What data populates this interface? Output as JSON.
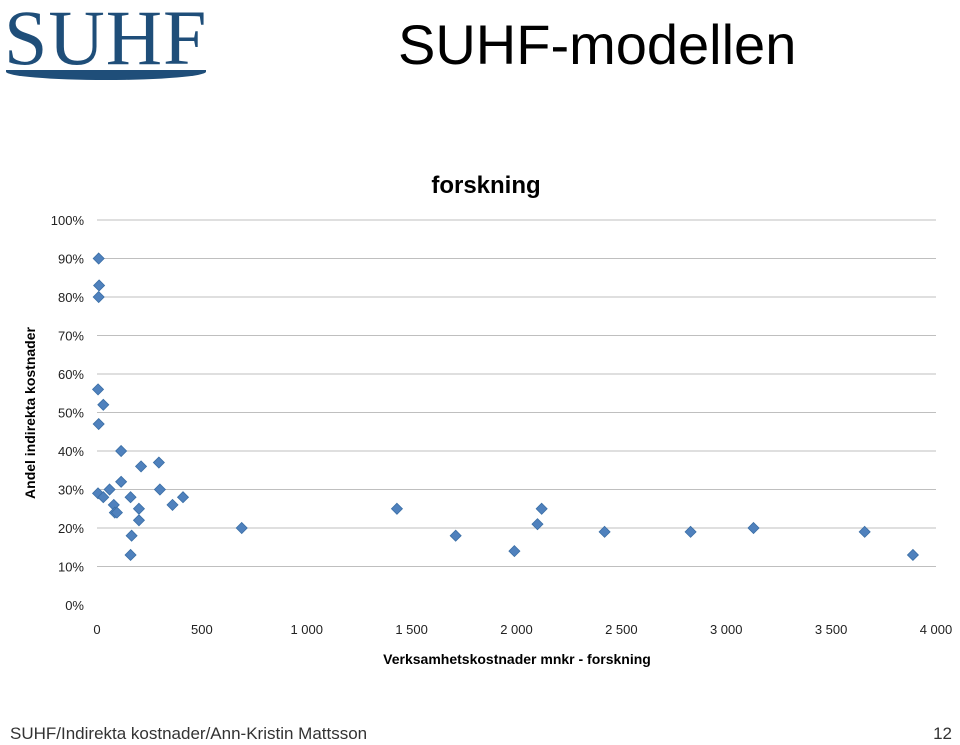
{
  "logo": {
    "text": "SUHF"
  },
  "slide": {
    "title": "SUHF-modellen"
  },
  "footer": {
    "left": "SUHF/Indirekta kostnader/Ann-Kristin Mattsson",
    "page_number": "12"
  },
  "chart_data": {
    "type": "scatter",
    "title": "forskning",
    "xlabel": "Verksamhetskostnader mnkr - forskning",
    "ylabel": "Andel indirekta kostnader",
    "xlim": [
      0,
      4000
    ],
    "ylim": [
      0,
      1.0
    ],
    "xticks": [
      0,
      500,
      1000,
      1500,
      2000,
      2500,
      3000,
      3500,
      4000
    ],
    "xtick_labels": [
      "0",
      "500",
      "1 000",
      "1 500",
      "2 000",
      "2 500",
      "3 000",
      "3 500",
      "4 000"
    ],
    "yticks": [
      0,
      0.1,
      0.2,
      0.3,
      0.4,
      0.5,
      0.6,
      0.7,
      0.8,
      0.9,
      1.0
    ],
    "ytick_labels": [
      "0%",
      "10%",
      "20%",
      "30%",
      "40%",
      "50%",
      "60%",
      "70%",
      "80%",
      "90%",
      "100%"
    ],
    "grid": "horizontal",
    "marker_color": "#4f81bd",
    "points": [
      [
        8,
        0.9
      ],
      [
        10,
        0.83
      ],
      [
        8,
        0.8
      ],
      [
        5,
        0.56
      ],
      [
        30,
        0.52
      ],
      [
        8,
        0.47
      ],
      [
        5,
        0.29
      ],
      [
        30,
        0.28
      ],
      [
        60,
        0.3
      ],
      [
        80,
        0.26
      ],
      [
        85,
        0.24
      ],
      [
        95,
        0.24
      ],
      [
        115,
        0.32
      ],
      [
        115,
        0.4
      ],
      [
        160,
        0.28
      ],
      [
        165,
        0.18
      ],
      [
        160,
        0.13
      ],
      [
        200,
        0.25
      ],
      [
        200,
        0.22
      ],
      [
        210,
        0.36
      ],
      [
        295,
        0.37
      ],
      [
        300,
        0.3
      ],
      [
        360,
        0.26
      ],
      [
        410,
        0.28
      ],
      [
        690,
        0.2
      ],
      [
        1430,
        0.25
      ],
      [
        1710,
        0.18
      ],
      [
        1990,
        0.14
      ],
      [
        2100,
        0.21
      ],
      [
        2120,
        0.25
      ],
      [
        2420,
        0.19
      ],
      [
        2830,
        0.19
      ],
      [
        3130,
        0.2
      ],
      [
        3660,
        0.19
      ],
      [
        3890,
        0.13
      ]
    ]
  }
}
